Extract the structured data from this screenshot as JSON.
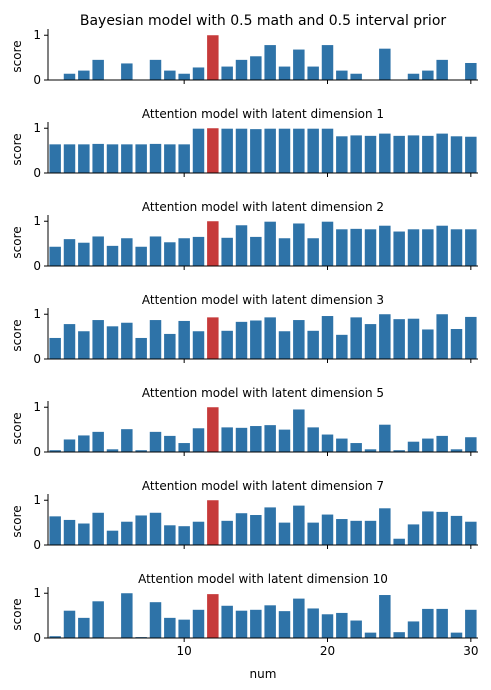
{
  "chart_data": {
    "type": "bar",
    "xlabel": "num",
    "ylabel": "score",
    "x": [
      1,
      2,
      3,
      4,
      5,
      6,
      7,
      8,
      9,
      10,
      11,
      12,
      13,
      14,
      15,
      16,
      17,
      18,
      19,
      20,
      21,
      22,
      23,
      24,
      25,
      26,
      27,
      28,
      29,
      30
    ],
    "highlight_x": 12,
    "ylim": [
      0,
      1.05
    ],
    "yticks": [
      "0",
      "1"
    ],
    "xticks": [
      "10",
      "20",
      "30"
    ],
    "colors": {
      "bar": "#2e73a8",
      "highlight": "#c63a3a"
    },
    "panels": [
      {
        "title": "Bayesian model with 0.5 math and 0.5 interval prior",
        "values": [
          0.0,
          0.14,
          0.21,
          0.45,
          0.0,
          0.37,
          0.0,
          0.45,
          0.21,
          0.14,
          0.28,
          1.0,
          0.3,
          0.45,
          0.53,
          0.78,
          0.3,
          0.68,
          0.3,
          0.78,
          0.21,
          0.14,
          0.0,
          0.7,
          0.0,
          0.14,
          0.21,
          0.45,
          0.0,
          0.38
        ]
      },
      {
        "title": "Attention model with latent dimension 1",
        "values": [
          0.64,
          0.64,
          0.64,
          0.65,
          0.64,
          0.64,
          0.64,
          0.65,
          0.64,
          0.64,
          0.99,
          1.0,
          0.99,
          0.99,
          0.98,
          0.99,
          0.99,
          0.99,
          0.99,
          0.99,
          0.82,
          0.84,
          0.83,
          0.88,
          0.83,
          0.84,
          0.83,
          0.88,
          0.82,
          0.81
        ]
      },
      {
        "title": "Attention model with latent dimension 2",
        "values": [
          0.43,
          0.6,
          0.52,
          0.66,
          0.45,
          0.62,
          0.43,
          0.66,
          0.53,
          0.62,
          0.65,
          1.0,
          0.63,
          0.91,
          0.65,
          0.99,
          0.62,
          0.95,
          0.62,
          0.99,
          0.82,
          0.83,
          0.82,
          0.9,
          0.77,
          0.82,
          0.82,
          0.9,
          0.82,
          0.82
        ]
      },
      {
        "title": "Attention model with latent dimension 3",
        "values": [
          0.47,
          0.78,
          0.62,
          0.87,
          0.73,
          0.81,
          0.47,
          0.87,
          0.56,
          0.85,
          0.62,
          0.93,
          0.63,
          0.83,
          0.86,
          0.93,
          0.62,
          0.87,
          0.63,
          0.96,
          0.54,
          0.93,
          0.78,
          1.0,
          0.89,
          0.9,
          0.66,
          1.0,
          0.67,
          0.94
        ]
      },
      {
        "title": "Attention model with latent dimension 5",
        "values": [
          0.04,
          0.28,
          0.37,
          0.45,
          0.06,
          0.51,
          0.04,
          0.45,
          0.36,
          0.2,
          0.53,
          1.0,
          0.55,
          0.54,
          0.58,
          0.6,
          0.5,
          0.95,
          0.55,
          0.39,
          0.3,
          0.2,
          0.06,
          0.61,
          0.04,
          0.23,
          0.3,
          0.36,
          0.06,
          0.33
        ]
      },
      {
        "title": "Attention model with latent dimension 7",
        "values": [
          0.64,
          0.56,
          0.48,
          0.72,
          0.32,
          0.52,
          0.66,
          0.72,
          0.44,
          0.42,
          0.52,
          1.0,
          0.54,
          0.71,
          0.67,
          0.84,
          0.5,
          0.88,
          0.5,
          0.68,
          0.58,
          0.54,
          0.54,
          0.82,
          0.14,
          0.46,
          0.75,
          0.74,
          0.65,
          0.52
        ]
      },
      {
        "title": "Attention model with latent dimension 10",
        "values": [
          0.04,
          0.61,
          0.45,
          0.82,
          0.0,
          1.0,
          0.02,
          0.8,
          0.45,
          0.41,
          0.63,
          0.98,
          0.72,
          0.61,
          0.63,
          0.73,
          0.6,
          0.88,
          0.66,
          0.53,
          0.56,
          0.39,
          0.12,
          0.96,
          0.13,
          0.37,
          0.65,
          0.65,
          0.12,
          0.63
        ]
      }
    ]
  }
}
